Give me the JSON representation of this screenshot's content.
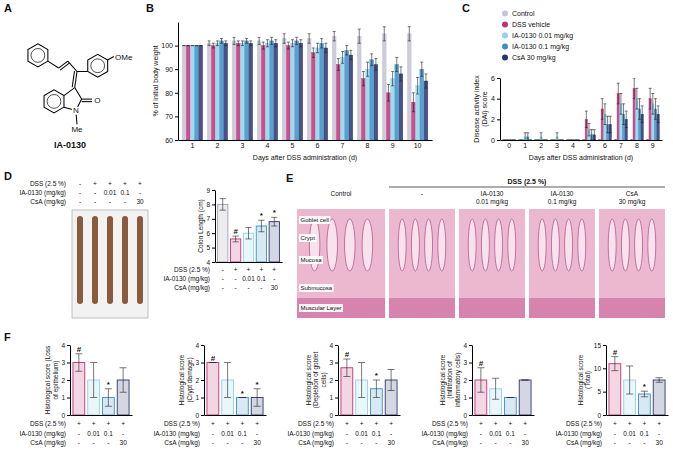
{
  "figure": {
    "panel_labels": [
      "A",
      "B",
      "C",
      "D",
      "E",
      "F"
    ],
    "structure": {
      "name": "IA-0130",
      "atoms": [
        "OMe",
        "O",
        "N",
        "Me"
      ]
    },
    "colon_photo": {
      "rows": [
        {
          "label": "DSS (2.5 %)",
          "values": [
            "-",
            "+",
            "+",
            "+",
            "+"
          ]
        },
        {
          "label": "IA-0130 (mg/kg)",
          "values": [
            "-",
            "-",
            "0.01",
            "0.1",
            "-"
          ]
        },
        {
          "label": "CsA (mg/kg)",
          "values": [
            "-",
            "-",
            "-",
            "-",
            "30"
          ]
        }
      ]
    },
    "histology": {
      "header": "DSS (2.5 %)",
      "columns": [
        [
          "Control"
        ],
        [
          "-"
        ],
        [
          "IA-0130",
          "0.01 mg/kg"
        ],
        [
          "IA-0130",
          "0.1 mg/kg"
        ],
        [
          "CsA",
          "30 mg/kg"
        ]
      ],
      "annotations": [
        "Goblet cell",
        "Crypt",
        "Mucosa",
        "Submucosa",
        "Muscular Layer"
      ]
    }
  },
  "chart_data": [
    {
      "type": "bar",
      "x_label": "Days after DSS administration (d)",
      "y_label": "% of initial body weight",
      "categories": [
        "1",
        "2",
        "3",
        "4",
        "5",
        "6",
        "7",
        "8",
        "9",
        "10"
      ],
      "series": [
        {
          "name": "Control",
          "color": "#c4c4d4",
          "values": [
            100,
            101,
            102,
            102,
            103,
            103,
            104,
            104,
            105,
            105
          ],
          "errors": [
            0,
            1,
            1.5,
            1.5,
            2,
            2,
            2,
            3,
            3,
            3
          ]
        },
        {
          "name": "DSS vehicle",
          "color": "#c0307a",
          "values": [
            100,
            100,
            101,
            100,
            100,
            97,
            92,
            86,
            80,
            76
          ],
          "errors": [
            0,
            1,
            1,
            1.5,
            1.5,
            2,
            2.5,
            3,
            3.5,
            4
          ]
        },
        {
          "name": "IA-0130 0.01 mg/kg",
          "color": "#8fd3e8",
          "values": [
            100,
            101,
            101,
            101,
            101,
            99,
            95,
            90,
            86,
            83
          ],
          "errors": [
            0,
            1,
            1,
            1.5,
            1.5,
            2,
            2.5,
            3,
            3,
            3.5
          ]
        },
        {
          "name": "IA-0130 0.1 mg/kg",
          "color": "#3a8fc8",
          "values": [
            100,
            102,
            102,
            102,
            102,
            101,
            98,
            94,
            92,
            90
          ],
          "errors": [
            0,
            1,
            1,
            1.5,
            1.5,
            2,
            2,
            2.5,
            3,
            3
          ]
        },
        {
          "name": "CsA 30 mg/kg",
          "color": "#2a3570",
          "values": [
            100,
            101,
            101,
            101,
            101,
            99,
            96,
            92,
            88,
            85
          ],
          "errors": [
            0,
            1,
            1,
            1.5,
            1.5,
            2,
            2,
            2.5,
            3,
            3
          ]
        }
      ],
      "ylim": [
        60,
        110
      ],
      "yticks": [
        60,
        70,
        80,
        90,
        100
      ],
      "legend": "right"
    },
    {
      "type": "bar",
      "x_label": "Days after DSS administration (d)",
      "y_label": "Disease activity index (DAI) score",
      "categories": [
        "0",
        "1",
        "2",
        "3",
        "4",
        "5",
        "6",
        "7",
        "8",
        "9"
      ],
      "series": [
        {
          "color": "#c4c4d4",
          "values": [
            0,
            0,
            0,
            0,
            0,
            0,
            0,
            0,
            0,
            0
          ],
          "errors": [
            0,
            0,
            0,
            0,
            0,
            0,
            0,
            0,
            0,
            0
          ]
        },
        {
          "color": "#c0307a",
          "values": [
            0,
            0,
            0,
            0,
            0,
            2,
            3,
            4.5,
            5,
            4
          ],
          "errors": [
            0,
            0,
            0,
            0,
            0,
            0.8,
            1,
            1,
            1,
            1
          ]
        },
        {
          "color": "#8fd3e8",
          "values": [
            0,
            0.3,
            0.3,
            0.3,
            0,
            1,
            2.5,
            3.5,
            4,
            3.5
          ],
          "errors": [
            0,
            0.4,
            0.4,
            0.4,
            0,
            0.6,
            1,
            1,
            1,
            1
          ]
        },
        {
          "color": "#3a8fc8",
          "values": [
            0,
            0.3,
            0,
            0,
            0,
            0.5,
            1.5,
            2.5,
            3,
            3
          ],
          "errors": [
            0,
            0.4,
            0,
            0,
            0,
            0.5,
            0.8,
            1,
            1,
            1
          ]
        },
        {
          "color": "#2a3570",
          "values": [
            0,
            0,
            0,
            0,
            0,
            0.5,
            1.5,
            2,
            2.5,
            2.5
          ],
          "errors": [
            0,
            0,
            0,
            0,
            0,
            0.5,
            0.8,
            0.8,
            0.8,
            0.8
          ]
        }
      ],
      "ylim": [
        0,
        6
      ],
      "yticks": [
        0,
        2,
        4,
        6
      ]
    },
    {
      "type": "bar",
      "y_label": "Colon Length (cm)",
      "categories": [
        null,
        null,
        null,
        null,
        null
      ],
      "values": [
        8.0,
        5.6,
        6.0,
        6.5,
        6.8
      ],
      "errors": [
        0.4,
        0.2,
        0.4,
        0.4,
        0.3
      ],
      "colors": [
        "#a0a0b0",
        "#c0307a",
        "#8fd3e8",
        "#3a8fc8",
        "#2a3570"
      ],
      "significance": [
        null,
        "#",
        null,
        "*",
        "*"
      ],
      "treatment_table": {
        "rows": [
          {
            "label": "DSS (2.5 %)",
            "values": [
              "-",
              "+",
              "+",
              "+",
              "+"
            ]
          },
          {
            "label": "IA-0130 (mg/kg)",
            "values": [
              "-",
              "-",
              "0.01",
              "0.1",
              "-"
            ]
          },
          {
            "label": "CsA (mg/kg)",
            "values": [
              "-",
              "-",
              "-",
              "-",
              "30"
            ]
          }
        ]
      },
      "ylim": [
        4,
        9
      ],
      "yticks": [
        4,
        5,
        6,
        7,
        8,
        9
      ]
    },
    {
      "type": "bar",
      "y_label": "Histological score (Loss of epithelium)",
      "categories": [
        null,
        null,
        null,
        null
      ],
      "values": [
        3,
        2,
        1,
        2
      ],
      "errors": [
        0.5,
        1,
        0.5,
        0.7
      ],
      "colors": [
        "#c0307a",
        "#8fd3e8",
        "#3a8fc8",
        "#2a3570"
      ],
      "significance": [
        "#",
        null,
        "*",
        null
      ],
      "treatment_table": {
        "rows": [
          {
            "label": "DSS (2.5 %)",
            "values": [
              "+",
              "+",
              "+",
              "+"
            ]
          },
          {
            "label": "IA-0130 (mg/kg)",
            "values": [
              "-",
              "0.01",
              "0.1",
              "-"
            ]
          },
          {
            "label": "CsA (mg/kg)",
            "values": [
              "-",
              "-",
              "-",
              "30"
            ]
          }
        ]
      },
      "ylim": [
        0,
        4
      ],
      "yticks": [
        0,
        1,
        2,
        3,
        4
      ]
    },
    {
      "type": "bar",
      "y_label": "Histological score (Crypt damage)",
      "categories": [
        null,
        null,
        null,
        null
      ],
      "values": [
        3,
        2,
        1,
        1
      ],
      "errors": [
        0,
        1,
        0,
        0.5
      ],
      "colors": [
        "#c0307a",
        "#8fd3e8",
        "#3a8fc8",
        "#2a3570"
      ],
      "significance": [
        "#",
        null,
        "*",
        "*"
      ],
      "treatment_table": {
        "rows": [
          {
            "label": "DSS (2.5 %)",
            "values": [
              "+",
              "+",
              "+",
              "+"
            ]
          },
          {
            "label": "IA-0130 (mg/kg)",
            "values": [
              "-",
              "0.01",
              "0.1",
              "-"
            ]
          },
          {
            "label": "CsA (mg/kg)",
            "values": [
              "-",
              "-",
              "-",
              "30"
            ]
          }
        ]
      },
      "ylim": [
        0,
        4
      ],
      "yticks": [
        0,
        1,
        2,
        3,
        4
      ]
    },
    {
      "type": "bar",
      "y_label": "Histological score (Depletion of goblet cells)",
      "categories": [
        null,
        null,
        null,
        null
      ],
      "values": [
        2.7,
        2,
        1.5,
        2
      ],
      "errors": [
        0.5,
        1,
        0.5,
        0.6
      ],
      "colors": [
        "#c0307a",
        "#8fd3e8",
        "#3a8fc8",
        "#2a3570"
      ],
      "significance": [
        "#",
        null,
        "*",
        null
      ],
      "treatment_table": {
        "rows": [
          {
            "label": "DSS (2.5 %)",
            "values": [
              "+",
              "+",
              "+",
              "+"
            ]
          },
          {
            "label": "IA-0130 (mg/kg)",
            "values": [
              "-",
              "0.01",
              "0.1",
              "-"
            ]
          },
          {
            "label": "CsA (mg/kg)",
            "values": [
              "-",
              "-",
              "-",
              "30"
            ]
          }
        ]
      },
      "ylim": [
        0,
        4
      ],
      "yticks": [
        0,
        1,
        2,
        3,
        4
      ]
    },
    {
      "type": "bar",
      "y_label": "Histological score (Infiltration of inflammatory cells)",
      "categories": [
        null,
        null,
        null,
        null
      ],
      "values": [
        2,
        1.5,
        1,
        2
      ],
      "errors": [
        0.7,
        0.6,
        0,
        0
      ],
      "colors": [
        "#c0307a",
        "#8fd3e8",
        "#3a8fc8",
        "#2a3570"
      ],
      "significance": [
        "#",
        null,
        null,
        null
      ],
      "treatment_table": {
        "rows": [
          {
            "label": "DSS (2.5 %)",
            "values": [
              "+",
              "+",
              "+",
              "+"
            ]
          },
          {
            "label": "IA-0130 (mg/kg)",
            "values": [
              "-",
              "0.01",
              "0.1",
              "-"
            ]
          },
          {
            "label": "CsA (mg/kg)",
            "values": [
              "-",
              "-",
              "-",
              "30"
            ]
          }
        ]
      },
      "ylim": [
        0,
        4
      ],
      "yticks": [
        0,
        1,
        2,
        3,
        4
      ]
    },
    {
      "type": "bar",
      "y_label": "Histological score (Total)",
      "categories": [
        null,
        null,
        null,
        null
      ],
      "values": [
        11,
        7.5,
        4.5,
        7.5
      ],
      "errors": [
        1.5,
        3,
        0.6,
        0.5
      ],
      "colors": [
        "#c0307a",
        "#8fd3e8",
        "#3a8fc8",
        "#2a3570"
      ],
      "significance": [
        "#",
        null,
        "*",
        null
      ],
      "treatment_table": {
        "rows": [
          {
            "label": "DSS (2.5 %)",
            "values": [
              "+",
              "+",
              "+",
              "+"
            ]
          },
          {
            "label": "IA-0130 (mg/kg)",
            "values": [
              "-",
              "0.01",
              "0.1",
              "-"
            ]
          },
          {
            "label": "CsA (mg/kg)",
            "values": [
              "-",
              "-",
              "-",
              "30"
            ]
          }
        ]
      },
      "ylim": [
        0,
        15
      ],
      "yticks": [
        0,
        5,
        10,
        15
      ]
    }
  ]
}
